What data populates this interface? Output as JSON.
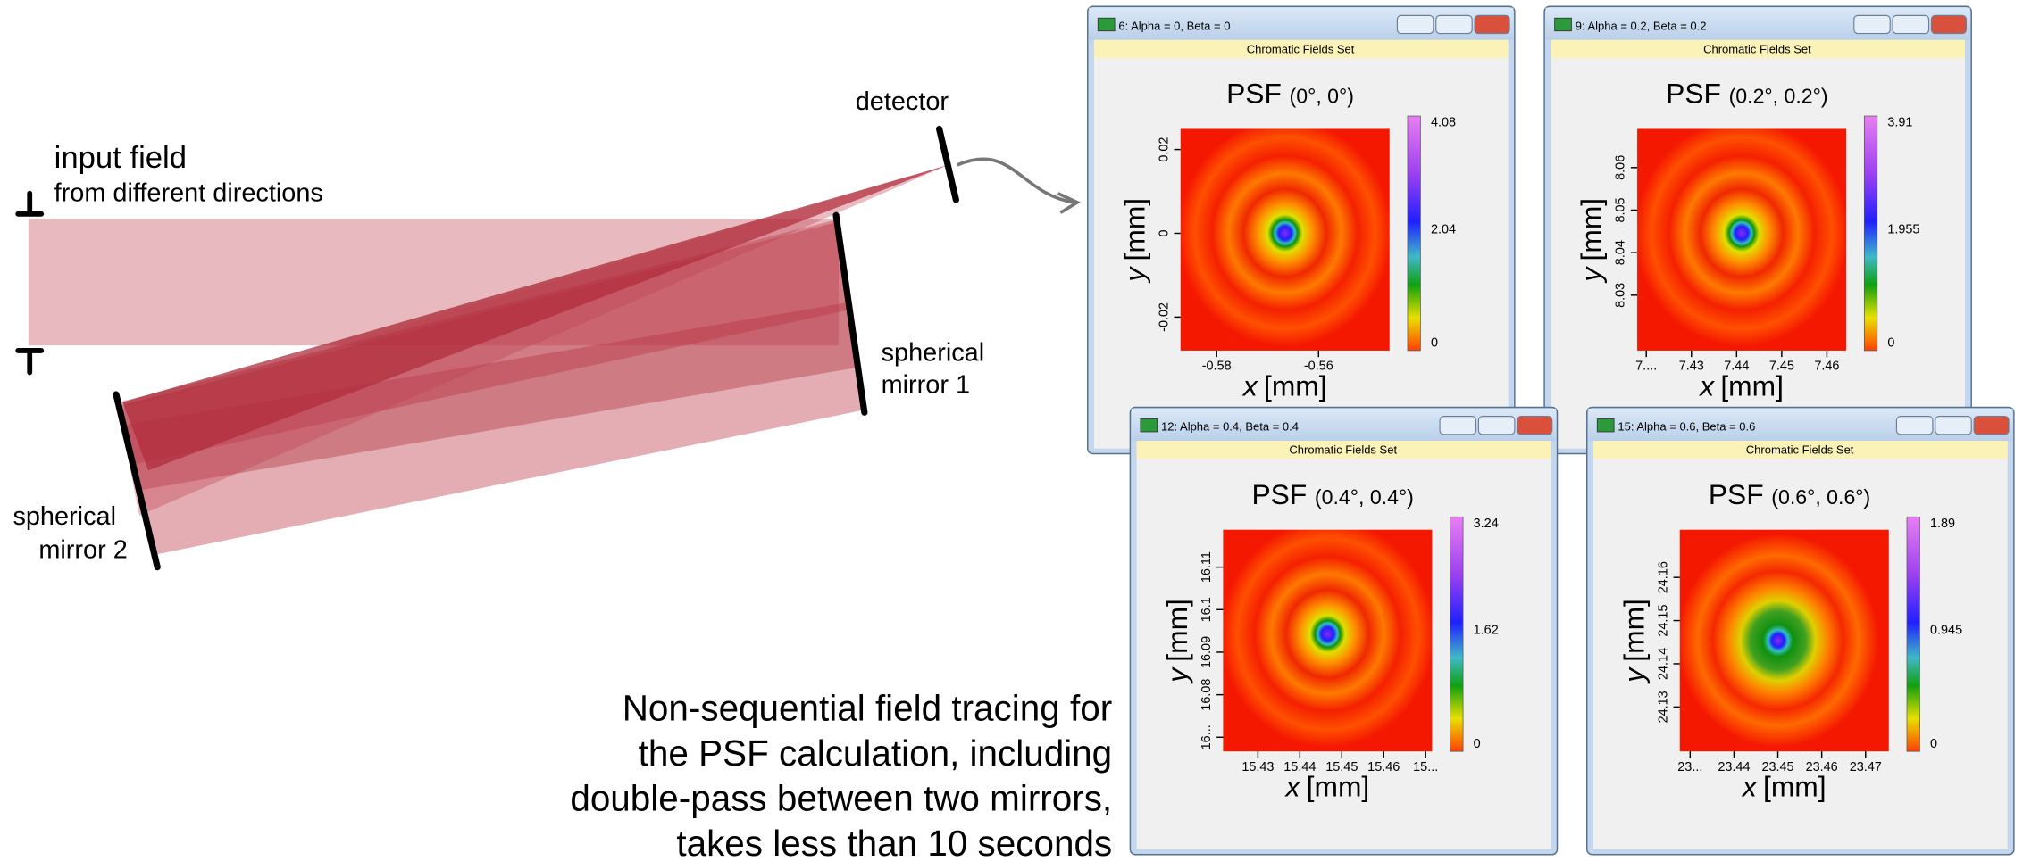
{
  "diagram": {
    "input_field": "input field",
    "input_direction": "from different directions",
    "detector": "detector",
    "mirror1": [
      "spherical",
      "mirror 1"
    ],
    "mirror2": [
      "spherical",
      "mirror 2"
    ],
    "caption": [
      "Non-sequential field tracing for",
      "the PSF calculation, including",
      "double-pass between two mirrors,",
      "takes less than 10 seconds"
    ]
  },
  "windows": [
    {
      "title": "6: Alpha = 0, Beta = 0",
      "toolbar": "Chromatic Fields Set",
      "plot_title": "PSF",
      "plot_angles": "(0°, 0°)",
      "x_var": "x",
      "x_unit": "[mm]",
      "y_var": "y",
      "y_unit": "[mm]",
      "x_ticks": [
        "-0.58",
        "-0.56"
      ],
      "y_ticks": [
        "0.02",
        "0",
        "-0.02"
      ],
      "colorbar_ticks": [
        "4.08",
        "2.04",
        "0"
      ]
    },
    {
      "title": "9: Alpha = 0.2, Beta = 0.2",
      "toolbar": "Chromatic Fields Set",
      "plot_title": "PSF",
      "plot_angles": "(0.2°, 0.2°)",
      "x_var": "x",
      "x_unit": "[mm]",
      "y_var": "y",
      "y_unit": "[mm]",
      "x_ticks": [
        "7....",
        "7.43",
        "7.44",
        "7.45",
        "7.46"
      ],
      "y_ticks": [
        "8.06",
        "8.05",
        "8.04",
        "8.03"
      ],
      "colorbar_ticks": [
        "3.91",
        "1.955",
        "0"
      ]
    },
    {
      "title": "12: Alpha = 0.4, Beta = 0.4",
      "toolbar": "Chromatic Fields Set",
      "plot_title": "PSF",
      "plot_angles": "(0.4°, 0.4°)",
      "x_var": "x",
      "x_unit": "[mm]",
      "y_var": "y",
      "y_unit": "[mm]",
      "x_ticks": [
        "15.43",
        "15.44",
        "15.45",
        "15.46",
        "15..."
      ],
      "y_ticks": [
        "16.11",
        "16.1",
        "16.09",
        "16.08",
        "16..."
      ],
      "colorbar_ticks": [
        "3.24",
        "1.62",
        "0"
      ]
    },
    {
      "title": "15: Alpha = 0.6, Beta = 0.6",
      "toolbar": "Chromatic Fields Set",
      "plot_title": "PSF",
      "plot_angles": "(0.6°, 0.6°)",
      "x_var": "x",
      "x_unit": "[mm]",
      "y_var": "y",
      "y_unit": "[mm]",
      "x_ticks": [
        "23...",
        "23.44",
        "23.45",
        "23.46",
        "23.47"
      ],
      "y_ticks": [
        "24.16",
        "24.15",
        "24.14",
        "24.13"
      ],
      "colorbar_ticks": [
        "1.89",
        "0.945",
        "0"
      ]
    }
  ]
}
